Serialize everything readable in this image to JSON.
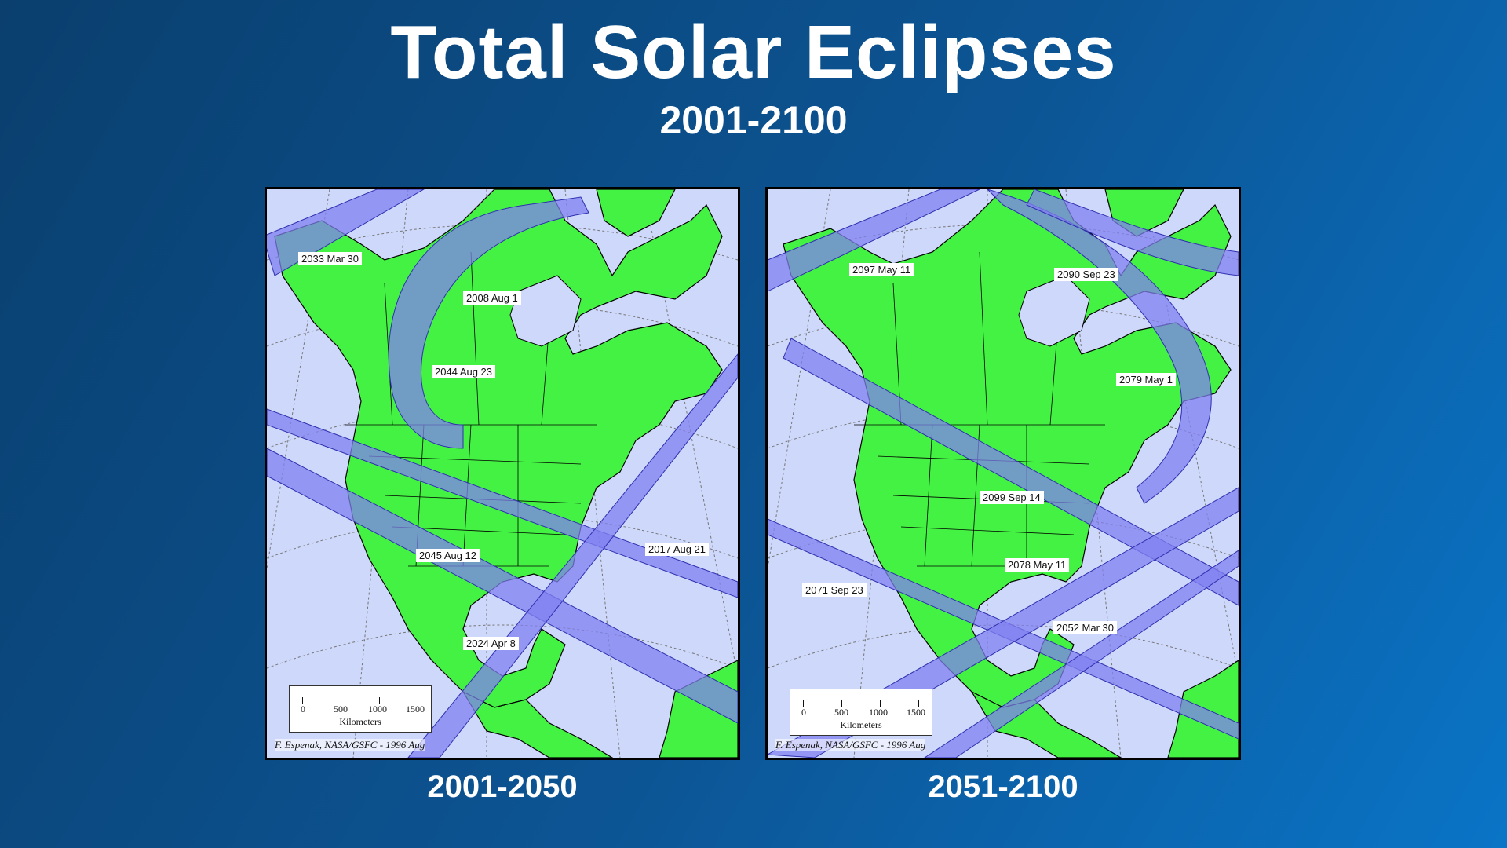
{
  "title": "Total Solar Eclipses",
  "subtitle": "2001-2100",
  "maps": {
    "left": {
      "caption": "2001-2050",
      "labels": [
        "2033 Mar 30",
        "2008 Aug 1",
        "2044 Aug 23",
        "2045 Aug 12",
        "2017 Aug 21",
        "2024 Apr 8"
      ],
      "scale_ticks": [
        "0",
        "500",
        "1000",
        "1500"
      ],
      "scale_unit": "Kilometers",
      "credit": "F. Espenak, NASA/GSFC - 1996 Aug"
    },
    "right": {
      "caption": "2051-2100",
      "labels": [
        "2097 May 11",
        "2090 Sep 23",
        "2079 May 1",
        "2099 Sep 14",
        "2078 May 11",
        "2071 Sep 23",
        "2052 Mar 30"
      ],
      "scale_ticks": [
        "0",
        "500",
        "1000",
        "1500"
      ],
      "scale_unit": "Kilometers",
      "credit": "F. Espenak, NASA/GSFC - 1996 Aug"
    }
  },
  "colors": {
    "land": "#44f244",
    "ocean": "#cdd8fa",
    "eclipse_path": "#8080f0"
  }
}
